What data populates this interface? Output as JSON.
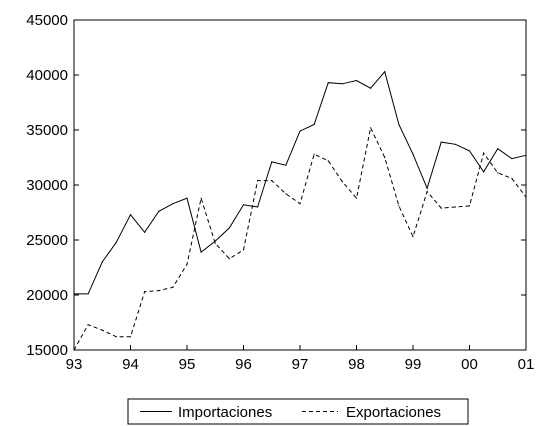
{
  "chart_data": {
    "type": "line",
    "x_ticks": [
      "93",
      "94",
      "95",
      "96",
      "97",
      "98",
      "99",
      "00",
      "01"
    ],
    "y_ticks": [
      15000,
      20000,
      25000,
      30000,
      35000,
      40000,
      45000
    ],
    "ylim": [
      15000,
      45000
    ],
    "xlim": [
      1993.0,
      2001.0
    ],
    "grid": false,
    "legend_position": "bottom-center",
    "x": [
      1993.0,
      1993.25,
      1993.5,
      1993.75,
      1994.0,
      1994.25,
      1994.5,
      1994.75,
      1995.0,
      1995.25,
      1995.5,
      1995.75,
      1996.0,
      1996.25,
      1996.5,
      1996.75,
      1997.0,
      1997.25,
      1997.5,
      1997.75,
      1998.0,
      1998.25,
      1998.5,
      1998.75,
      1999.0,
      1999.25,
      1999.5,
      1999.75,
      2000.0,
      2000.25,
      2000.5,
      2000.75,
      2001.0
    ],
    "series": [
      {
        "name": "Importaciones",
        "style": "solid",
        "values": [
          20100,
          20100,
          23000,
          24800,
          27300,
          25700,
          27600,
          28300,
          28800,
          23900,
          24900,
          26100,
          28200,
          28000,
          32100,
          31800,
          34900,
          35500,
          39300,
          39200,
          39500,
          38800,
          40300,
          35500,
          32800,
          29700,
          33900,
          33700,
          33100,
          31200,
          33300,
          32400,
          32700
        ]
      },
      {
        "name": "Exportaciones",
        "style": "dashed",
        "values": [
          15000,
          17300,
          16800,
          16200,
          16200,
          20300,
          20400,
          20700,
          22800,
          28800,
          24700,
          23300,
          24100,
          30400,
          30400,
          29200,
          28300,
          32800,
          32200,
          30300,
          28800,
          35200,
          32500,
          28100,
          25300,
          29400,
          27900,
          28000,
          28100,
          32900,
          31100,
          30600,
          28900
        ]
      }
    ]
  }
}
